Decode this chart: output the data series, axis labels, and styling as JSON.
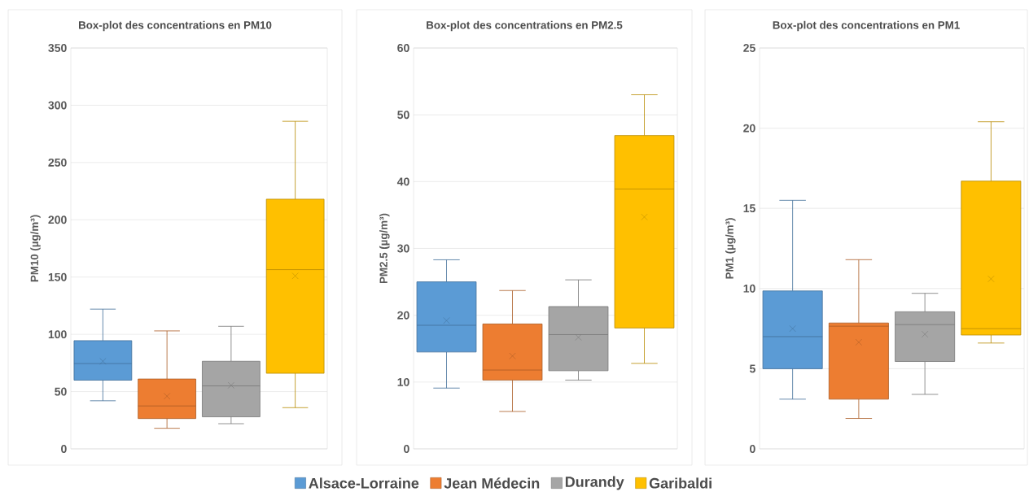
{
  "chart_data": [
    {
      "type": "box",
      "title": "Box-plot des concentrations en PM10",
      "ylabel": "PM10 (µg/m³)",
      "categories": [
        null
      ],
      "ylim": [
        0,
        350
      ],
      "yticks": [
        0,
        50,
        100,
        150,
        200,
        250,
        300,
        350
      ],
      "grid": "y",
      "tick_labels": "y",
      "series": [
        {
          "color": "#5b9bd5",
          "boxes": [
            {
              "low": 42,
              "q1": 60,
              "median": 74.5,
              "q3": 94.5,
              "high": 122,
              "mean": 76.5
            }
          ]
        },
        {
          "color": "#ed7d31",
          "boxes": [
            {
              "low": 18,
              "q1": 26.5,
              "median": 37.5,
              "q3": 61,
              "high": 103,
              "mean": 46
            }
          ]
        },
        {
          "color": "#a5a5a5",
          "boxes": [
            {
              "low": 22,
              "q1": 28,
              "median": 55,
              "q3": 76.5,
              "high": 107,
              "mean": 55.5
            }
          ]
        },
        {
          "color": "#ffc000",
          "boxes": [
            {
              "low": 36,
              "q1": 66,
              "median": 156.5,
              "q3": 218,
              "high": 286,
              "mean": 151
            }
          ]
        }
      ]
    },
    {
      "type": "box",
      "title": "Box-plot des concentrations en PM2.5",
      "ylabel": "PM2.5 (µg/m³)",
      "categories": [
        null
      ],
      "ylim": [
        0,
        60
      ],
      "yticks": [
        0,
        10,
        20,
        30,
        40,
        50,
        60
      ],
      "grid": "y",
      "tick_labels": "y",
      "legend": "bottom",
      "series": [
        {
          "name": "Alsace-Lorraine",
          "color": "#5b9bd5",
          "boxes": [
            {
              "low": 9.1,
              "q1": 14.5,
              "median": 18.5,
              "q3": 25,
              "high": 28.3,
              "mean": 19.2
            }
          ]
        },
        {
          "name": "Jean Médecin",
          "color": "#ed7d31",
          "boxes": [
            {
              "low": 5.6,
              "q1": 10.3,
              "median": 11.8,
              "q3": 18.7,
              "high": 23.7,
              "mean": 13.9
            }
          ]
        },
        {
          "name": "Durandy",
          "color": "#a5a5a5",
          "boxes": [
            {
              "low": 10.3,
              "q1": 11.7,
              "median": 17.1,
              "q3": 21.3,
              "high": 25.3,
              "mean": 16.7
            }
          ]
        },
        {
          "name": "Garibaldi",
          "color": "#ffc000",
          "boxes": [
            {
              "low": 12.8,
              "q1": 18.1,
              "median": 38.9,
              "q3": 46.9,
              "high": 53,
              "mean": 34.7
            }
          ]
        }
      ]
    },
    {
      "type": "box",
      "title": "Box-plot des concentrations en PM1",
      "ylabel": "PM1 (µg/m³)",
      "categories": [
        null
      ],
      "ylim": [
        0,
        25
      ],
      "yticks": [
        0,
        5,
        10,
        15,
        20,
        25
      ],
      "grid": "y",
      "tick_labels": "y",
      "series": [
        {
          "color": "#5b9bd5",
          "boxes": [
            {
              "low": 3.1,
              "q1": 5,
              "median": 7,
              "q3": 9.85,
              "high": 15.5,
              "mean": 7.5
            }
          ]
        },
        {
          "color": "#ed7d31",
          "boxes": [
            {
              "low": 1.9,
              "q1": 3.1,
              "median": 7.65,
              "q3": 7.85,
              "high": 11.8,
              "mean": 6.65
            }
          ]
        },
        {
          "color": "#a5a5a5",
          "boxes": [
            {
              "low": 3.4,
              "q1": 5.45,
              "median": 7.75,
              "q3": 8.55,
              "high": 9.7,
              "mean": 7.15
            }
          ]
        },
        {
          "color": "#ffc000",
          "boxes": [
            {
              "low": 6.6,
              "q1": 7.1,
              "median": 7.5,
              "q3": 16.7,
              "high": 20.4,
              "mean": 10.6
            }
          ]
        }
      ]
    }
  ]
}
